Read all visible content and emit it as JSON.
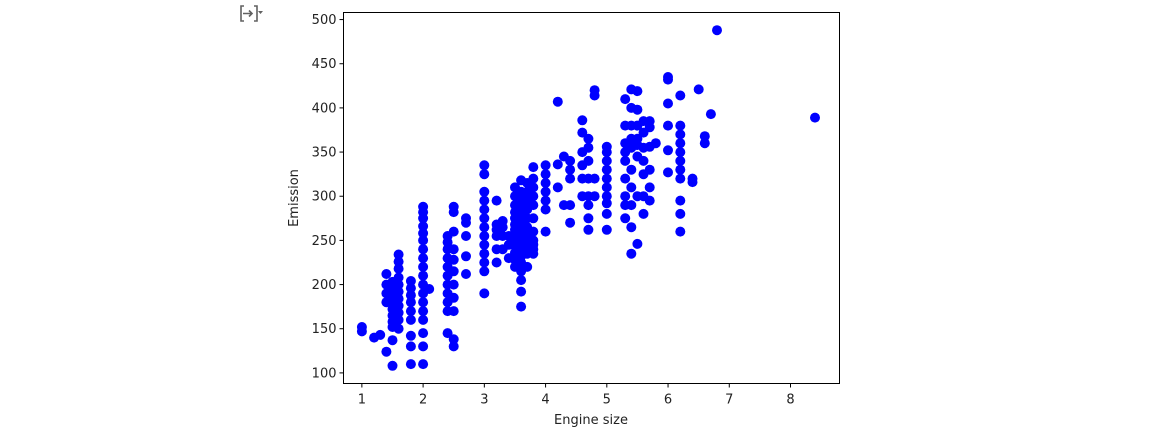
{
  "chart_data": {
    "type": "scatter",
    "xlabel": "Engine size",
    "ylabel": "Emission",
    "xlim": [
      0.7,
      8.8
    ],
    "ylim": [
      88,
      508
    ],
    "xticks": [
      1,
      2,
      3,
      4,
      5,
      6,
      7,
      8
    ],
    "yticks": [
      100,
      150,
      200,
      250,
      300,
      350,
      400,
      450,
      500
    ],
    "grid": false,
    "marker_color": "#0000ff",
    "series": [
      {
        "points": [
          [
            1.0,
            147
          ],
          [
            1.0,
            152
          ],
          [
            1.2,
            140
          ],
          [
            1.3,
            143
          ],
          [
            1.4,
            124
          ],
          [
            1.4,
            180
          ],
          [
            1.4,
            190
          ],
          [
            1.4,
            200
          ],
          [
            1.4,
            212
          ],
          [
            1.5,
            108
          ],
          [
            1.5,
            137
          ],
          [
            1.5,
            152
          ],
          [
            1.5,
            158
          ],
          [
            1.5,
            165
          ],
          [
            1.5,
            172
          ],
          [
            1.5,
            178
          ],
          [
            1.5,
            184
          ],
          [
            1.5,
            190
          ],
          [
            1.5,
            196
          ],
          [
            1.5,
            203
          ],
          [
            1.6,
            150
          ],
          [
            1.6,
            160
          ],
          [
            1.6,
            168
          ],
          [
            1.6,
            176
          ],
          [
            1.6,
            184
          ],
          [
            1.6,
            192
          ],
          [
            1.6,
            200
          ],
          [
            1.6,
            208
          ],
          [
            1.6,
            218
          ],
          [
            1.6,
            226
          ],
          [
            1.6,
            234
          ],
          [
            1.8,
            110
          ],
          [
            1.8,
            130
          ],
          [
            1.8,
            142
          ],
          [
            1.8,
            160
          ],
          [
            1.8,
            170
          ],
          [
            1.8,
            180
          ],
          [
            1.8,
            188
          ],
          [
            1.8,
            196
          ],
          [
            1.8,
            204
          ],
          [
            2.0,
            110
          ],
          [
            2.0,
            130
          ],
          [
            2.0,
            145
          ],
          [
            2.0,
            160
          ],
          [
            2.0,
            170
          ],
          [
            2.0,
            180
          ],
          [
            2.0,
            190
          ],
          [
            2.0,
            200
          ],
          [
            2.0,
            210
          ],
          [
            2.0,
            220
          ],
          [
            2.0,
            230
          ],
          [
            2.0,
            240
          ],
          [
            2.0,
            250
          ],
          [
            2.0,
            258
          ],
          [
            2.0,
            266
          ],
          [
            2.0,
            275
          ],
          [
            2.0,
            282
          ],
          [
            2.0,
            288
          ],
          [
            2.1,
            195
          ],
          [
            2.4,
            145
          ],
          [
            2.4,
            170
          ],
          [
            2.4,
            180
          ],
          [
            2.4,
            190
          ],
          [
            2.4,
            200
          ],
          [
            2.4,
            210
          ],
          [
            2.4,
            220
          ],
          [
            2.4,
            230
          ],
          [
            2.4,
            240
          ],
          [
            2.4,
            248
          ],
          [
            2.4,
            255
          ],
          [
            2.5,
            130
          ],
          [
            2.5,
            138
          ],
          [
            2.5,
            170
          ],
          [
            2.5,
            185
          ],
          [
            2.5,
            200
          ],
          [
            2.5,
            215
          ],
          [
            2.5,
            228
          ],
          [
            2.5,
            240
          ],
          [
            2.5,
            260
          ],
          [
            2.5,
            282
          ],
          [
            2.5,
            288
          ],
          [
            2.7,
            212
          ],
          [
            2.7,
            232
          ],
          [
            2.7,
            255
          ],
          [
            2.7,
            270
          ],
          [
            2.7,
            275
          ],
          [
            3.0,
            190
          ],
          [
            3.0,
            215
          ],
          [
            3.0,
            225
          ],
          [
            3.0,
            235
          ],
          [
            3.0,
            245
          ],
          [
            3.0,
            255
          ],
          [
            3.0,
            265
          ],
          [
            3.0,
            275
          ],
          [
            3.0,
            285
          ],
          [
            3.0,
            295
          ],
          [
            3.0,
            305
          ],
          [
            3.0,
            325
          ],
          [
            3.0,
            335
          ],
          [
            3.2,
            225
          ],
          [
            3.2,
            240
          ],
          [
            3.2,
            255
          ],
          [
            3.2,
            262
          ],
          [
            3.2,
            268
          ],
          [
            3.2,
            295
          ],
          [
            3.3,
            240
          ],
          [
            3.3,
            255
          ],
          [
            3.3,
            265
          ],
          [
            3.3,
            272
          ],
          [
            3.4,
            230
          ],
          [
            3.4,
            245
          ],
          [
            3.4,
            255
          ],
          [
            3.5,
            220
          ],
          [
            3.5,
            228
          ],
          [
            3.5,
            236
          ],
          [
            3.5,
            244
          ],
          [
            3.5,
            250
          ],
          [
            3.5,
            256
          ],
          [
            3.5,
            262
          ],
          [
            3.5,
            268
          ],
          [
            3.5,
            275
          ],
          [
            3.5,
            282
          ],
          [
            3.5,
            290
          ],
          [
            3.5,
            300
          ],
          [
            3.5,
            310
          ],
          [
            3.6,
            175
          ],
          [
            3.6,
            192
          ],
          [
            3.6,
            205
          ],
          [
            3.6,
            215
          ],
          [
            3.6,
            225
          ],
          [
            3.6,
            232
          ],
          [
            3.6,
            240
          ],
          [
            3.6,
            246
          ],
          [
            3.6,
            252
          ],
          [
            3.6,
            258
          ],
          [
            3.6,
            264
          ],
          [
            3.6,
            270
          ],
          [
            3.6,
            276
          ],
          [
            3.6,
            282
          ],
          [
            3.6,
            290
          ],
          [
            3.6,
            298
          ],
          [
            3.6,
            305
          ],
          [
            3.6,
            318
          ],
          [
            3.7,
            220
          ],
          [
            3.7,
            235
          ],
          [
            3.7,
            245
          ],
          [
            3.7,
            252
          ],
          [
            3.7,
            258
          ],
          [
            3.7,
            265
          ],
          [
            3.7,
            275
          ],
          [
            3.7,
            285
          ],
          [
            3.7,
            295
          ],
          [
            3.7,
            305
          ],
          [
            3.7,
            315
          ],
          [
            3.8,
            235
          ],
          [
            3.8,
            240
          ],
          [
            3.8,
            245
          ],
          [
            3.8,
            250
          ],
          [
            3.8,
            260
          ],
          [
            3.8,
            275
          ],
          [
            3.8,
            290
          ],
          [
            3.8,
            300
          ],
          [
            3.8,
            310
          ],
          [
            3.8,
            320
          ],
          [
            3.8,
            333
          ],
          [
            4.0,
            260
          ],
          [
            4.0,
            285
          ],
          [
            4.0,
            295
          ],
          [
            4.0,
            305
          ],
          [
            4.0,
            315
          ],
          [
            4.0,
            325
          ],
          [
            4.0,
            335
          ],
          [
            4.2,
            310
          ],
          [
            4.2,
            336
          ],
          [
            4.2,
            407
          ],
          [
            4.3,
            290
          ],
          [
            4.3,
            345
          ],
          [
            4.4,
            270
          ],
          [
            4.4,
            290
          ],
          [
            4.4,
            320
          ],
          [
            4.4,
            330
          ],
          [
            4.4,
            340
          ],
          [
            4.6,
            300
          ],
          [
            4.6,
            320
          ],
          [
            4.6,
            335
          ],
          [
            4.6,
            350
          ],
          [
            4.6,
            372
          ],
          [
            4.6,
            386
          ],
          [
            4.7,
            262
          ],
          [
            4.7,
            275
          ],
          [
            4.7,
            290
          ],
          [
            4.7,
            300
          ],
          [
            4.7,
            320
          ],
          [
            4.7,
            340
          ],
          [
            4.7,
            355
          ],
          [
            4.7,
            365
          ],
          [
            4.8,
            300
          ],
          [
            4.8,
            320
          ],
          [
            4.8,
            414
          ],
          [
            4.8,
            420
          ],
          [
            5.0,
            262
          ],
          [
            5.0,
            280
          ],
          [
            5.0,
            292
          ],
          [
            5.0,
            300
          ],
          [
            5.0,
            310
          ],
          [
            5.0,
            320
          ],
          [
            5.0,
            330
          ],
          [
            5.0,
            340
          ],
          [
            5.0,
            350
          ],
          [
            5.0,
            356
          ],
          [
            5.3,
            275
          ],
          [
            5.3,
            290
          ],
          [
            5.3,
            300
          ],
          [
            5.3,
            320
          ],
          [
            5.3,
            340
          ],
          [
            5.3,
            350
          ],
          [
            5.3,
            360
          ],
          [
            5.3,
            380
          ],
          [
            5.3,
            410
          ],
          [
            5.4,
            235
          ],
          [
            5.4,
            265
          ],
          [
            5.4,
            290
          ],
          [
            5.4,
            310
          ],
          [
            5.4,
            330
          ],
          [
            5.4,
            355
          ],
          [
            5.4,
            365
          ],
          [
            5.4,
            380
          ],
          [
            5.4,
            400
          ],
          [
            5.4,
            421
          ],
          [
            5.5,
            246
          ],
          [
            5.5,
            300
          ],
          [
            5.5,
            345
          ],
          [
            5.5,
            358
          ],
          [
            5.5,
            365
          ],
          [
            5.5,
            380
          ],
          [
            5.5,
            398
          ],
          [
            5.5,
            419
          ],
          [
            5.6,
            280
          ],
          [
            5.6,
            300
          ],
          [
            5.6,
            325
          ],
          [
            5.6,
            340
          ],
          [
            5.6,
            355
          ],
          [
            5.6,
            372
          ],
          [
            5.6,
            385
          ],
          [
            5.7,
            295
          ],
          [
            5.7,
            310
          ],
          [
            5.7,
            330
          ],
          [
            5.7,
            356
          ],
          [
            5.7,
            378
          ],
          [
            5.7,
            385
          ],
          [
            5.8,
            360
          ],
          [
            6.0,
            327
          ],
          [
            6.0,
            352
          ],
          [
            6.0,
            380
          ],
          [
            6.0,
            405
          ],
          [
            6.0,
            432
          ],
          [
            6.0,
            435
          ],
          [
            6.2,
            260
          ],
          [
            6.2,
            280
          ],
          [
            6.2,
            295
          ],
          [
            6.2,
            320
          ],
          [
            6.2,
            330
          ],
          [
            6.2,
            340
          ],
          [
            6.2,
            350
          ],
          [
            6.2,
            360
          ],
          [
            6.2,
            370
          ],
          [
            6.2,
            380
          ],
          [
            6.2,
            414
          ],
          [
            6.4,
            320
          ],
          [
            6.4,
            316
          ],
          [
            6.5,
            421
          ],
          [
            6.6,
            360
          ],
          [
            6.6,
            368
          ],
          [
            6.7,
            393
          ],
          [
            6.8,
            488
          ],
          [
            8.4,
            389
          ]
        ]
      }
    ]
  }
}
